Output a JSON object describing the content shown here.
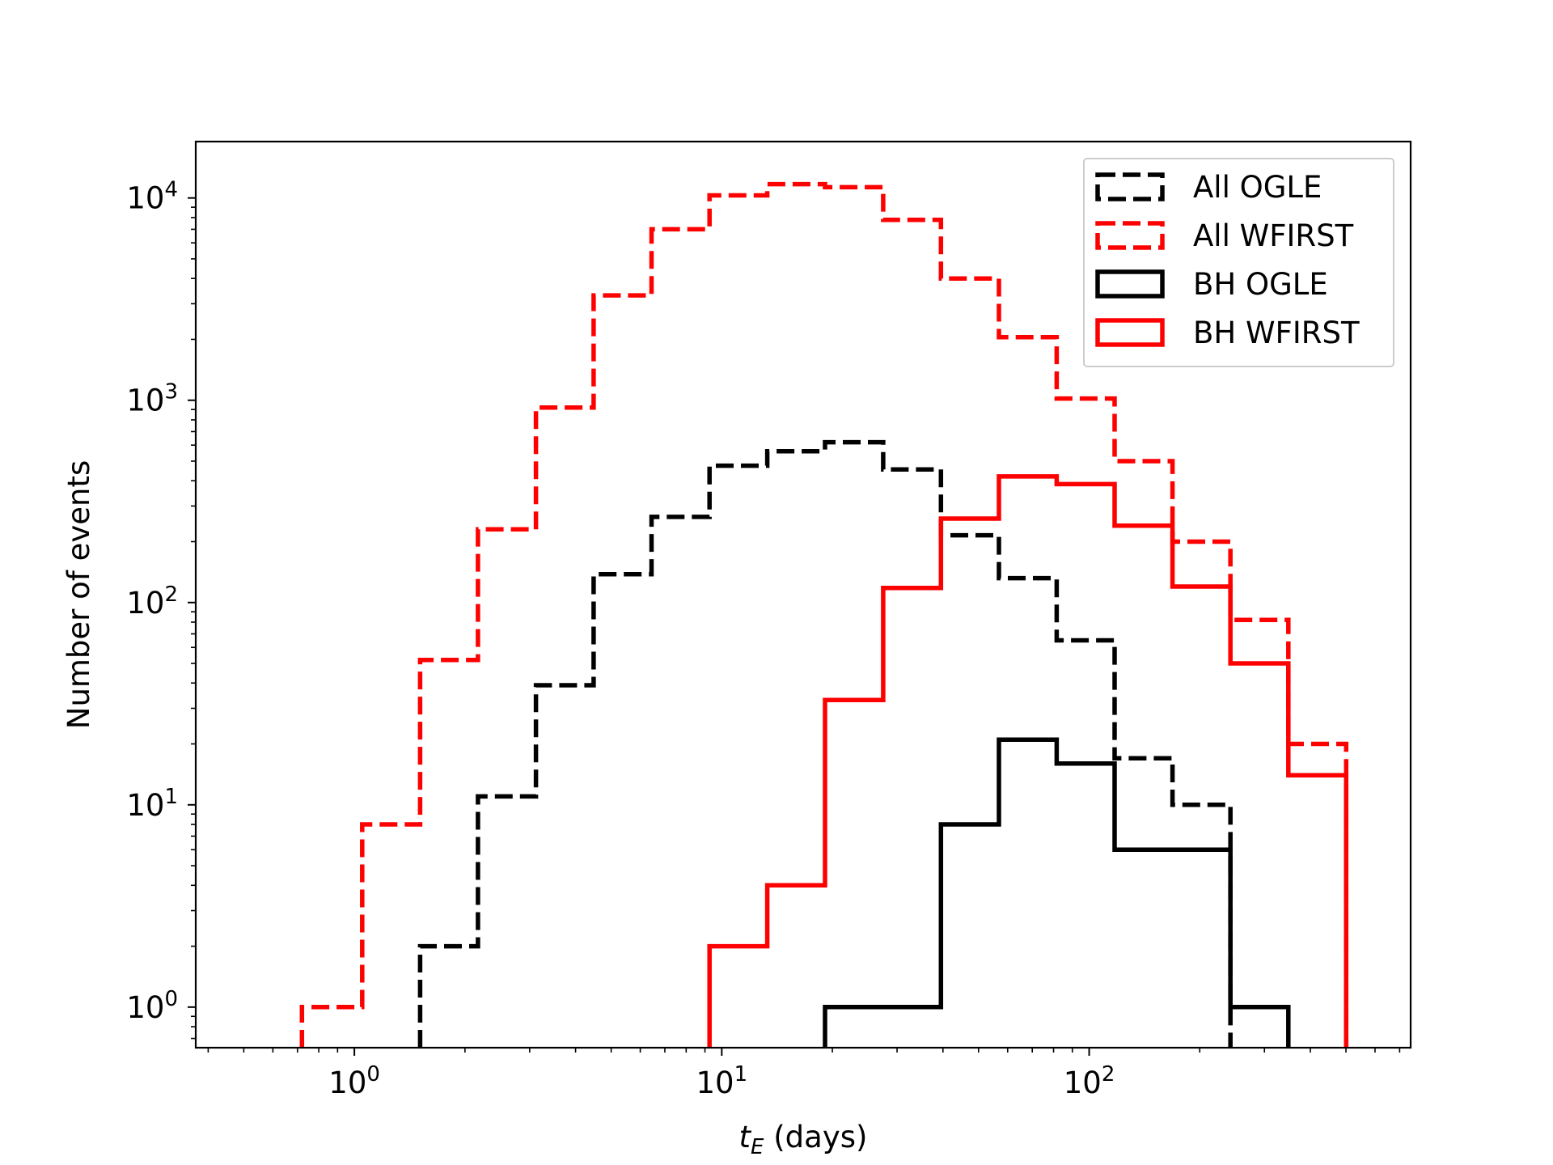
{
  "chart_data": {
    "type": "histogram",
    "x_scale": "log",
    "y_scale": "log",
    "xlim": [
      0.37,
      750
    ],
    "ylim": [
      0.63,
      19000
    ],
    "xlabel_main": "t",
    "xlabel_sub": "E",
    "xlabel_rest": " (days)",
    "ylabel": "Number of events",
    "x_ticks": [
      {
        "base": "10",
        "exp": "0",
        "value": 1
      },
      {
        "base": "10",
        "exp": "1",
        "value": 10
      },
      {
        "base": "10",
        "exp": "2",
        "value": 100
      }
    ],
    "y_ticks": [
      {
        "base": "10",
        "exp": "0",
        "value": 1
      },
      {
        "base": "10",
        "exp": "1",
        "value": 10
      },
      {
        "base": "10",
        "exp": "2",
        "value": 100
      },
      {
        "base": "10",
        "exp": "3",
        "value": 1000
      },
      {
        "base": "10",
        "exp": "4",
        "value": 10000
      }
    ],
    "legend_position": "top-right",
    "bin_edges": [
      0.72,
      1.05,
      1.51,
      2.17,
      3.12,
      4.48,
      6.44,
      9.26,
      13.3,
      19.1,
      27.5,
      39.5,
      56.8,
      81.6,
      117.3,
      168.6,
      242.4,
      348.4,
      500.8
    ],
    "series": [
      {
        "name": "All OGLE",
        "color": "#000000",
        "dashed": true,
        "values": [
          0,
          0,
          2,
          11,
          39,
          138,
          265,
          475,
          560,
          620,
          455,
          215,
          132,
          65,
          17,
          10,
          0,
          0
        ]
      },
      {
        "name": "All WFIRST",
        "color": "#ff0000",
        "dashed": true,
        "values": [
          1,
          8,
          52,
          230,
          920,
          3300,
          7000,
          10300,
          11700,
          11300,
          7800,
          4000,
          2050,
          1020,
          500,
          200,
          82,
          20
        ]
      },
      {
        "name": "BH OGLE",
        "color": "#000000",
        "dashed": false,
        "values": [
          0,
          0,
          0,
          0,
          0,
          0,
          0,
          0,
          0,
          1,
          1,
          8,
          21,
          16,
          6,
          6,
          1,
          0
        ]
      },
      {
        "name": "BH WFIRST",
        "color": "#ff0000",
        "dashed": false,
        "values": [
          0,
          0,
          0,
          0,
          0,
          0,
          0,
          2,
          4,
          33,
          118,
          260,
          420,
          385,
          240,
          120,
          50,
          14
        ]
      }
    ]
  }
}
